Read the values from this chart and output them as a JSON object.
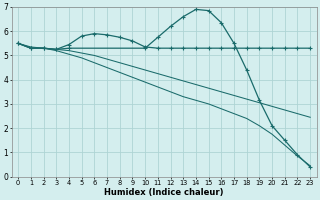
{
  "xlabel": "Humidex (Indice chaleur)",
  "bg_color": "#d4eeee",
  "grid_color": "#aed4d4",
  "line_color": "#1a6b6b",
  "xlim": [
    -0.5,
    23.5
  ],
  "ylim": [
    0,
    7
  ],
  "xticks": [
    0,
    1,
    2,
    3,
    4,
    5,
    6,
    7,
    8,
    9,
    10,
    11,
    12,
    13,
    14,
    15,
    16,
    17,
    18,
    19,
    20,
    21,
    22,
    23
  ],
  "yticks": [
    0,
    1,
    2,
    3,
    4,
    5,
    6,
    7
  ],
  "series": {
    "line1_x": [
      0,
      1,
      2,
      3,
      4,
      5,
      6,
      7,
      8,
      9,
      10,
      11,
      12,
      13,
      14,
      15,
      16,
      17,
      18,
      19,
      20,
      21,
      22,
      23
    ],
    "line1_y": [
      5.5,
      5.3,
      5.3,
      5.25,
      5.45,
      5.8,
      5.9,
      5.85,
      5.75,
      5.6,
      5.35,
      5.3,
      5.3,
      5.3,
      5.3,
      5.3,
      5.3,
      5.3,
      5.3,
      5.3,
      5.3,
      5.3,
      5.3,
      5.3
    ],
    "line2_x": [
      0,
      1,
      2,
      3,
      4,
      5,
      6,
      7,
      8,
      9,
      10,
      11,
      12,
      13,
      14,
      15,
      16,
      17,
      18,
      19,
      20,
      21,
      22,
      23
    ],
    "line2_y": [
      5.5,
      5.35,
      5.3,
      5.25,
      5.2,
      5.1,
      5.0,
      4.85,
      4.7,
      4.55,
      4.4,
      4.25,
      4.1,
      3.95,
      3.8,
      3.65,
      3.5,
      3.35,
      3.2,
      3.05,
      2.9,
      2.75,
      2.6,
      2.45
    ],
    "line3_x": [
      0,
      1,
      2,
      3,
      4,
      5,
      6,
      7,
      8,
      9,
      10,
      11,
      12,
      13,
      14,
      15,
      16,
      17,
      18,
      19,
      20,
      21,
      22,
      23
    ],
    "line3_y": [
      5.5,
      5.3,
      5.3,
      5.2,
      5.05,
      4.9,
      4.7,
      4.5,
      4.3,
      4.1,
      3.9,
      3.7,
      3.5,
      3.3,
      3.15,
      3.0,
      2.8,
      2.6,
      2.4,
      2.1,
      1.75,
      1.3,
      0.85,
      0.45
    ],
    "line4_x": [
      0,
      1,
      2,
      3,
      4,
      10,
      11,
      12,
      13,
      14,
      15,
      16,
      17,
      18,
      19,
      20,
      21,
      22,
      23
    ],
    "line4_y": [
      5.5,
      5.3,
      5.3,
      5.25,
      5.3,
      5.3,
      5.75,
      6.2,
      6.6,
      6.9,
      6.85,
      6.35,
      5.5,
      4.4,
      3.15,
      2.1,
      1.5,
      0.9,
      0.4
    ]
  }
}
